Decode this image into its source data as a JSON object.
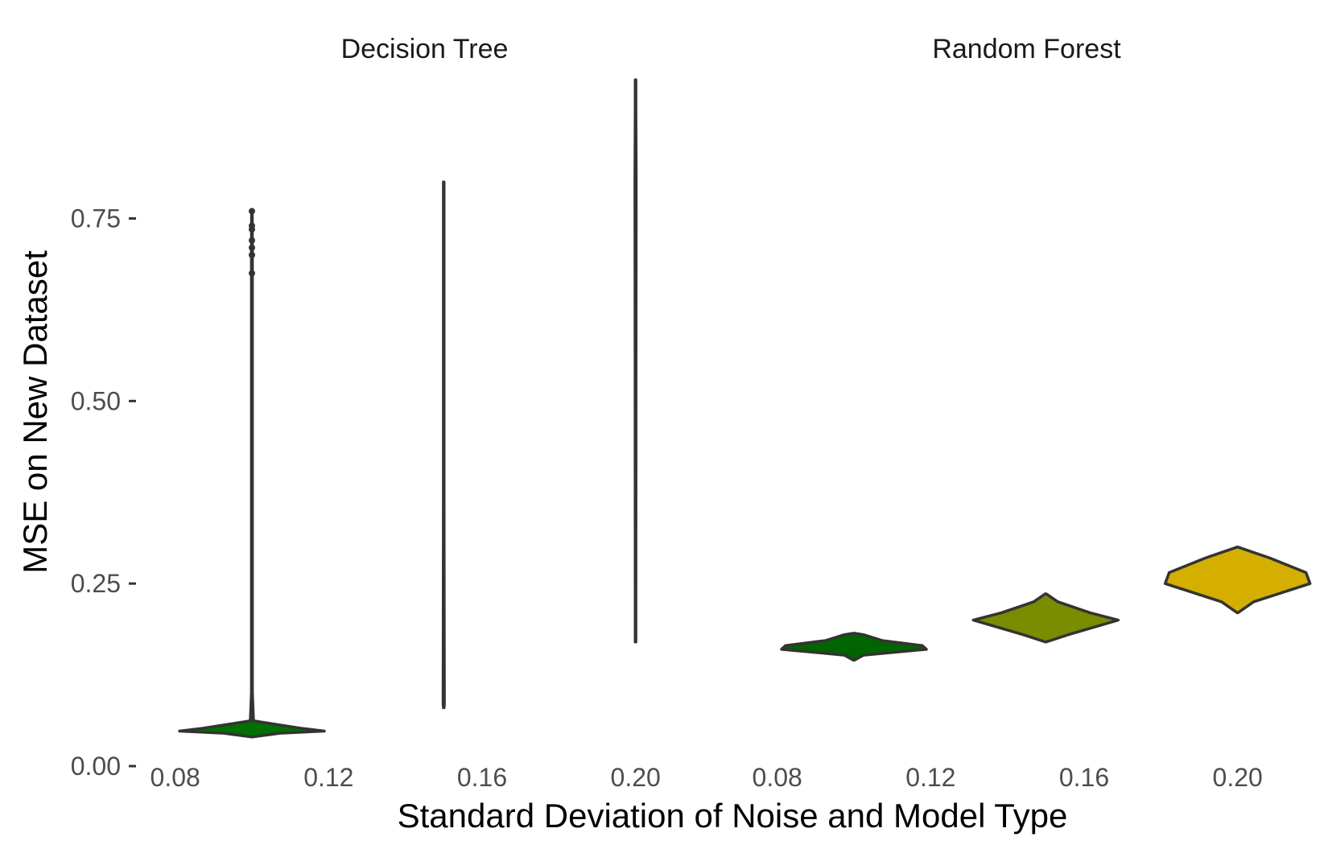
{
  "chart_data": {
    "type": "violin",
    "title": "",
    "xlabel": "Standard Deviation of Noise and Model Type",
    "ylabel": "MSE on New Dataset",
    "ylim": [
      0,
      0.95
    ],
    "yticks": [
      0,
      0.25,
      0.5,
      0.75
    ],
    "ytick_labels": [
      "0.00",
      "0.25",
      "0.50",
      "0.75"
    ],
    "xlim": [
      0.07,
      0.22
    ],
    "xticks": [
      0.08,
      0.12,
      0.16,
      0.2
    ],
    "xtick_labels": [
      "0.08",
      "0.12",
      "0.16",
      "0.20"
    ],
    "grid": false,
    "legend": "none",
    "facets": [
      {
        "title": "Decision Tree",
        "violins": [
          {
            "x": 0.1,
            "color": "#007000",
            "profile": [
              [
                0.04,
                0.0
              ],
              [
                0.045,
                0.35
              ],
              [
                0.048,
                0.9
              ],
              [
                0.052,
                0.6
              ],
              [
                0.058,
                0.25
              ],
              [
                0.062,
                0.02
              ],
              [
                0.1,
                0.006
              ],
              [
                0.3,
                0.006
              ],
              [
                0.5,
                0.006
              ],
              [
                0.7,
                0.006
              ],
              [
                0.76,
                0.004
              ]
            ],
            "outliers": [
              0.675,
              0.7,
              0.71,
              0.72,
              0.735,
              0.74,
              0.76
            ]
          },
          {
            "x": 0.15,
            "color": "#808000",
            "profile": [
              [
                0.08,
                0.0
              ],
              [
                0.085,
                0.008
              ],
              [
                0.2,
                0.006
              ],
              [
                0.4,
                0.004
              ],
              [
                0.6,
                0.004
              ],
              [
                0.78,
                0.004
              ],
              [
                0.8,
                0.003
              ]
            ],
            "outliers": []
          },
          {
            "x": 0.2,
            "color": "#808000",
            "profile": [
              [
                0.17,
                0.0
              ],
              [
                0.2,
                0.004
              ],
              [
                0.4,
                0.005
              ],
              [
                0.6,
                0.006
              ],
              [
                0.8,
                0.008
              ],
              [
                0.9,
                0.004
              ],
              [
                0.94,
                0.0
              ]
            ],
            "outliers": []
          }
        ]
      },
      {
        "title": "Random Forest",
        "violins": [
          {
            "x": 0.1,
            "color": "#006400",
            "profile": [
              [
                0.145,
                0.0
              ],
              [
                0.152,
                0.12
              ],
              [
                0.16,
                0.9
              ],
              [
                0.165,
                0.85
              ],
              [
                0.172,
                0.35
              ],
              [
                0.18,
                0.12
              ],
              [
                0.182,
                0.0
              ]
            ],
            "outliers": []
          },
          {
            "x": 0.15,
            "color": "#7a8c00",
            "profile": [
              [
                0.17,
                0.0
              ],
              [
                0.18,
                0.28
              ],
              [
                0.2,
                0.9
              ],
              [
                0.21,
                0.55
              ],
              [
                0.225,
                0.15
              ],
              [
                0.236,
                0.0
              ]
            ],
            "outliers": []
          },
          {
            "x": 0.2,
            "color": "#d4af00",
            "profile": [
              [
                0.21,
                0.0
              ],
              [
                0.225,
                0.2
              ],
              [
                0.25,
                0.9
              ],
              [
                0.265,
                0.85
              ],
              [
                0.285,
                0.4
              ],
              [
                0.3,
                0.0
              ]
            ],
            "outliers": []
          }
        ]
      }
    ]
  }
}
